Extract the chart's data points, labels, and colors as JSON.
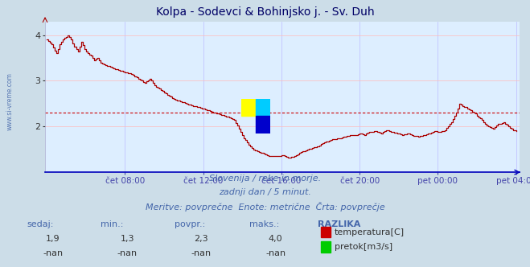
{
  "title": "Kolpa - Sodevci & Bohinjsko j. - Sv. Duh",
  "bg_color": "#ccdde8",
  "plot_bg_color": "#ddeeff",
  "line_color": "#aa0000",
  "avg_line_color": "#cc0000",
  "avg_value": 2.3,
  "ylim": [
    1.0,
    4.3
  ],
  "yticks": [
    2,
    3,
    4
  ],
  "ylabel_color": "#333333",
  "xlabel_color": "#4444aa",
  "grid_color": "#ffbbbb",
  "grid_color_v": "#bbbbff",
  "subtitle_lines": [
    "Slovenija / reke in morje.",
    "zadnji dan / 5 minut.",
    "Meritve: povprečne  Enote: metrične  Črta: povprečje"
  ],
  "table_headers": [
    "sedaj:",
    "min.:",
    "povpr.:",
    "maks.:",
    "RAZLIKA"
  ],
  "table_row1": [
    "1,9",
    "1,3",
    "2,3",
    "4,0"
  ],
  "table_row2": [
    "-nan",
    "-nan",
    "-nan",
    "-nan"
  ],
  "legend_items": [
    "temperatura[C]",
    "pretok[m3/s]"
  ],
  "legend_colors": [
    "#cc0000",
    "#00cc00"
  ],
  "xtick_labels": [
    "čet 08:00",
    "čet 12:00",
    "čet 16:00",
    "čet 20:00",
    "pet 00:00",
    "pet 04:00"
  ],
  "sidebar_text": "www.si-vreme.com",
  "sidebar_color": "#4466aa",
  "logo_colors": [
    "#ffff00",
    "#00ccff",
    "#0000cc"
  ],
  "text_color": "#4466aa"
}
